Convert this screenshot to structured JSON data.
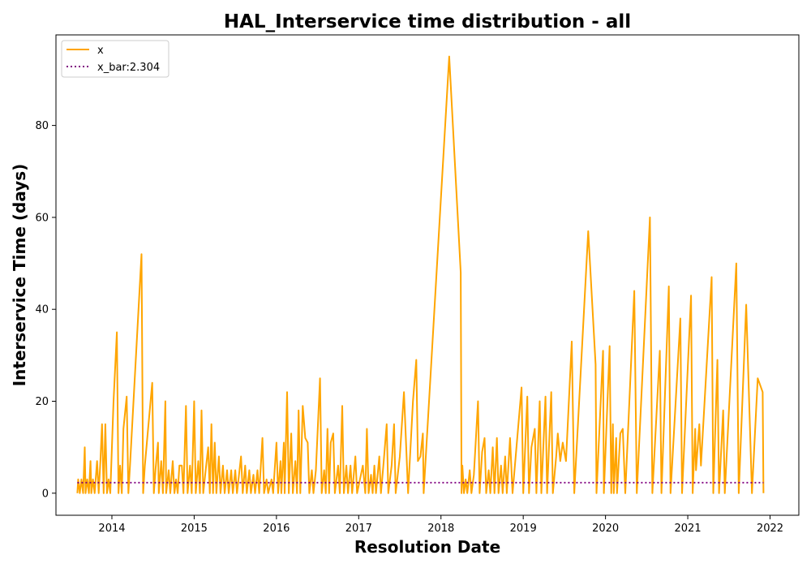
{
  "chart_data": {
    "type": "line",
    "title": "HAL_Interservice time distribution - all",
    "xlabel": "Resolution Date",
    "ylabel": "Interservice Time (days)",
    "xlim": [
      2013.32,
      2022.35
    ],
    "ylim": [
      -4.8,
      99.7
    ],
    "xticks": [
      2014,
      2015,
      2016,
      2017,
      2018,
      2019,
      2020,
      2021,
      2022
    ],
    "xtick_labels": [
      "2014",
      "2015",
      "2016",
      "2017",
      "2018",
      "2019",
      "2020",
      "2021",
      "2022"
    ],
    "yticks": [
      0,
      20,
      40,
      60,
      80
    ],
    "ytick_labels": [
      "0",
      "20",
      "40",
      "60",
      "80"
    ],
    "grid": false,
    "legend_position": "top-left",
    "series": [
      {
        "name": "x",
        "color": "#ffa500",
        "style": "solid",
        "points": [
          [
            2013.58,
            0
          ],
          [
            2013.59,
            3
          ],
          [
            2013.61,
            0
          ],
          [
            2013.63,
            3
          ],
          [
            2013.65,
            0
          ],
          [
            2013.67,
            10
          ],
          [
            2013.68,
            0
          ],
          [
            2013.7,
            3
          ],
          [
            2013.72,
            0
          ],
          [
            2013.74,
            7
          ],
          [
            2013.75,
            0
          ],
          [
            2013.77,
            3
          ],
          [
            2013.79,
            0
          ],
          [
            2013.82,
            7
          ],
          [
            2013.84,
            0
          ],
          [
            2013.86,
            7
          ],
          [
            2013.88,
            15
          ],
          [
            2013.9,
            0
          ],
          [
            2013.92,
            15
          ],
          [
            2013.94,
            0
          ],
          [
            2013.96,
            3
          ],
          [
            2013.98,
            0
          ],
          [
            2014.02,
            20
          ],
          [
            2014.06,
            35
          ],
          [
            2014.08,
            0
          ],
          [
            2014.1,
            6
          ],
          [
            2014.12,
            0
          ],
          [
            2014.14,
            14
          ],
          [
            2014.18,
            21
          ],
          [
            2014.2,
            0
          ],
          [
            2014.22,
            6
          ],
          [
            2014.36,
            52
          ],
          [
            2014.38,
            0
          ],
          [
            2014.4,
            6
          ],
          [
            2014.44,
            14
          ],
          [
            2014.49,
            24
          ],
          [
            2014.51,
            0
          ],
          [
            2014.53,
            5
          ],
          [
            2014.56,
            11
          ],
          [
            2014.57,
            0
          ],
          [
            2014.6,
            7
          ],
          [
            2014.62,
            0
          ],
          [
            2014.65,
            20
          ],
          [
            2014.66,
            0
          ],
          [
            2014.69,
            5
          ],
          [
            2014.71,
            0
          ],
          [
            2014.74,
            7
          ],
          [
            2014.76,
            0
          ],
          [
            2014.78,
            3
          ],
          [
            2014.8,
            0
          ],
          [
            2014.82,
            6
          ],
          [
            2014.85,
            6
          ],
          [
            2014.87,
            0
          ],
          [
            2014.9,
            19
          ],
          [
            2014.92,
            0
          ],
          [
            2014.95,
            6
          ],
          [
            2014.97,
            0
          ],
          [
            2015.0,
            20
          ],
          [
            2015.02,
            0
          ],
          [
            2015.05,
            7
          ],
          [
            2015.07,
            0
          ],
          [
            2015.09,
            18
          ],
          [
            2015.11,
            0
          ],
          [
            2015.14,
            5
          ],
          [
            2015.17,
            10
          ],
          [
            2015.19,
            0
          ],
          [
            2015.21,
            15
          ],
          [
            2015.23,
            0
          ],
          [
            2015.25,
            11
          ],
          [
            2015.27,
            0
          ],
          [
            2015.3,
            8
          ],
          [
            2015.32,
            0
          ],
          [
            2015.35,
            6
          ],
          [
            2015.37,
            0
          ],
          [
            2015.4,
            5
          ],
          [
            2015.42,
            0
          ],
          [
            2015.45,
            5
          ],
          [
            2015.47,
            0
          ],
          [
            2015.5,
            5
          ],
          [
            2015.52,
            0
          ],
          [
            2015.57,
            8
          ],
          [
            2015.59,
            0
          ],
          [
            2015.62,
            6
          ],
          [
            2015.64,
            0
          ],
          [
            2015.67,
            5
          ],
          [
            2015.69,
            0
          ],
          [
            2015.72,
            4
          ],
          [
            2015.74,
            0
          ],
          [
            2015.77,
            5
          ],
          [
            2015.79,
            0
          ],
          [
            2015.83,
            12
          ],
          [
            2015.85,
            0
          ],
          [
            2015.88,
            3
          ],
          [
            2015.9,
            0
          ],
          [
            2015.94,
            3
          ],
          [
            2015.96,
            0
          ],
          [
            2016.0,
            11
          ],
          [
            2016.02,
            0
          ],
          [
            2016.05,
            7
          ],
          [
            2016.06,
            0
          ],
          [
            2016.09,
            11
          ],
          [
            2016.1,
            0
          ],
          [
            2016.13,
            22
          ],
          [
            2016.15,
            0
          ],
          [
            2016.18,
            13
          ],
          [
            2016.2,
            0
          ],
          [
            2016.23,
            7
          ],
          [
            2016.25,
            0
          ],
          [
            2016.27,
            18
          ],
          [
            2016.29,
            0
          ],
          [
            2016.32,
            19
          ],
          [
            2016.35,
            12
          ],
          [
            2016.38,
            11
          ],
          [
            2016.4,
            0
          ],
          [
            2016.43,
            5
          ],
          [
            2016.45,
            0
          ],
          [
            2016.48,
            5
          ],
          [
            2016.53,
            25
          ],
          [
            2016.55,
            0
          ],
          [
            2016.58,
            5
          ],
          [
            2016.6,
            0
          ],
          [
            2016.62,
            14
          ],
          [
            2016.64,
            0
          ],
          [
            2016.66,
            11
          ],
          [
            2016.69,
            13
          ],
          [
            2016.71,
            0
          ],
          [
            2016.75,
            6
          ],
          [
            2016.77,
            0
          ],
          [
            2016.8,
            19
          ],
          [
            2016.82,
            0
          ],
          [
            2016.85,
            6
          ],
          [
            2016.87,
            0
          ],
          [
            2016.9,
            6
          ],
          [
            2016.92,
            0
          ],
          [
            2016.96,
            8
          ],
          [
            2016.98,
            0
          ],
          [
            2017.05,
            6
          ],
          [
            2017.08,
            0
          ],
          [
            2017.1,
            14
          ],
          [
            2017.12,
            0
          ],
          [
            2017.15,
            4
          ],
          [
            2017.17,
            0
          ],
          [
            2017.19,
            6
          ],
          [
            2017.21,
            0
          ],
          [
            2017.25,
            8
          ],
          [
            2017.27,
            0
          ],
          [
            2017.3,
            6
          ],
          [
            2017.34,
            15
          ],
          [
            2017.36,
            0
          ],
          [
            2017.4,
            6
          ],
          [
            2017.43,
            15
          ],
          [
            2017.45,
            0
          ],
          [
            2017.5,
            8
          ],
          [
            2017.55,
            22
          ],
          [
            2017.6,
            0
          ],
          [
            2017.66,
            20
          ],
          [
            2017.7,
            29
          ],
          [
            2017.72,
            7
          ],
          [
            2017.75,
            8
          ],
          [
            2017.78,
            13
          ],
          [
            2017.79,
            0
          ],
          [
            2018.1,
            95
          ],
          [
            2018.24,
            48
          ],
          [
            2018.25,
            0
          ],
          [
            2018.26,
            6
          ],
          [
            2018.28,
            0
          ],
          [
            2018.3,
            3
          ],
          [
            2018.32,
            0
          ],
          [
            2018.35,
            5
          ],
          [
            2018.37,
            0
          ],
          [
            2018.4,
            4
          ],
          [
            2018.45,
            20
          ],
          [
            2018.47,
            0
          ],
          [
            2018.5,
            9
          ],
          [
            2018.53,
            12
          ],
          [
            2018.55,
            0
          ],
          [
            2018.58,
            5
          ],
          [
            2018.6,
            0
          ],
          [
            2018.63,
            10
          ],
          [
            2018.65,
            0
          ],
          [
            2018.68,
            12
          ],
          [
            2018.7,
            0
          ],
          [
            2018.73,
            6
          ],
          [
            2018.75,
            0
          ],
          [
            2018.78,
            8
          ],
          [
            2018.8,
            0
          ],
          [
            2018.84,
            12
          ],
          [
            2018.87,
            0
          ],
          [
            2018.98,
            23
          ],
          [
            2019.0,
            0
          ],
          [
            2019.05,
            21
          ],
          [
            2019.07,
            0
          ],
          [
            2019.1,
            10
          ],
          [
            2019.14,
            14
          ],
          [
            2019.16,
            0
          ],
          [
            2019.2,
            20
          ],
          [
            2019.22,
            0
          ],
          [
            2019.27,
            21
          ],
          [
            2019.29,
            0
          ],
          [
            2019.34,
            22
          ],
          [
            2019.36,
            0
          ],
          [
            2019.4,
            8
          ],
          [
            2019.42,
            13
          ],
          [
            2019.45,
            7
          ],
          [
            2019.48,
            11
          ],
          [
            2019.52,
            7
          ],
          [
            2019.59,
            33
          ],
          [
            2019.62,
            0
          ],
          [
            2019.79,
            57
          ],
          [
            2019.88,
            28
          ],
          [
            2019.89,
            0
          ],
          [
            2019.97,
            31
          ],
          [
            2019.98,
            0
          ],
          [
            2020.05,
            32
          ],
          [
            2020.07,
            0
          ],
          [
            2020.09,
            15
          ],
          [
            2020.1,
            0
          ],
          [
            2020.13,
            12
          ],
          [
            2020.14,
            0
          ],
          [
            2020.18,
            13
          ],
          [
            2020.21,
            14
          ],
          [
            2020.24,
            0
          ],
          [
            2020.35,
            44
          ],
          [
            2020.38,
            0
          ],
          [
            2020.54,
            60
          ],
          [
            2020.57,
            0
          ],
          [
            2020.66,
            31
          ],
          [
            2020.68,
            0
          ],
          [
            2020.77,
            45
          ],
          [
            2020.79,
            0
          ],
          [
            2020.91,
            38
          ],
          [
            2020.93,
            0
          ],
          [
            2021.04,
            43
          ],
          [
            2021.06,
            0
          ],
          [
            2021.09,
            14
          ],
          [
            2021.1,
            5
          ],
          [
            2021.14,
            15
          ],
          [
            2021.16,
            6
          ],
          [
            2021.29,
            47
          ],
          [
            2021.31,
            0
          ],
          [
            2021.36,
            29
          ],
          [
            2021.38,
            0
          ],
          [
            2021.43,
            18
          ],
          [
            2021.45,
            0
          ],
          [
            2021.59,
            50
          ],
          [
            2021.62,
            0
          ],
          [
            2021.71,
            41
          ],
          [
            2021.78,
            0
          ],
          [
            2021.85,
            25
          ],
          [
            2021.91,
            22
          ],
          [
            2021.92,
            0
          ]
        ]
      },
      {
        "name": "x_bar:2.304",
        "color": "#800080",
        "style": "dotted",
        "points": [
          [
            2013.58,
            2.304
          ],
          [
            2021.92,
            2.304
          ]
        ]
      }
    ]
  }
}
